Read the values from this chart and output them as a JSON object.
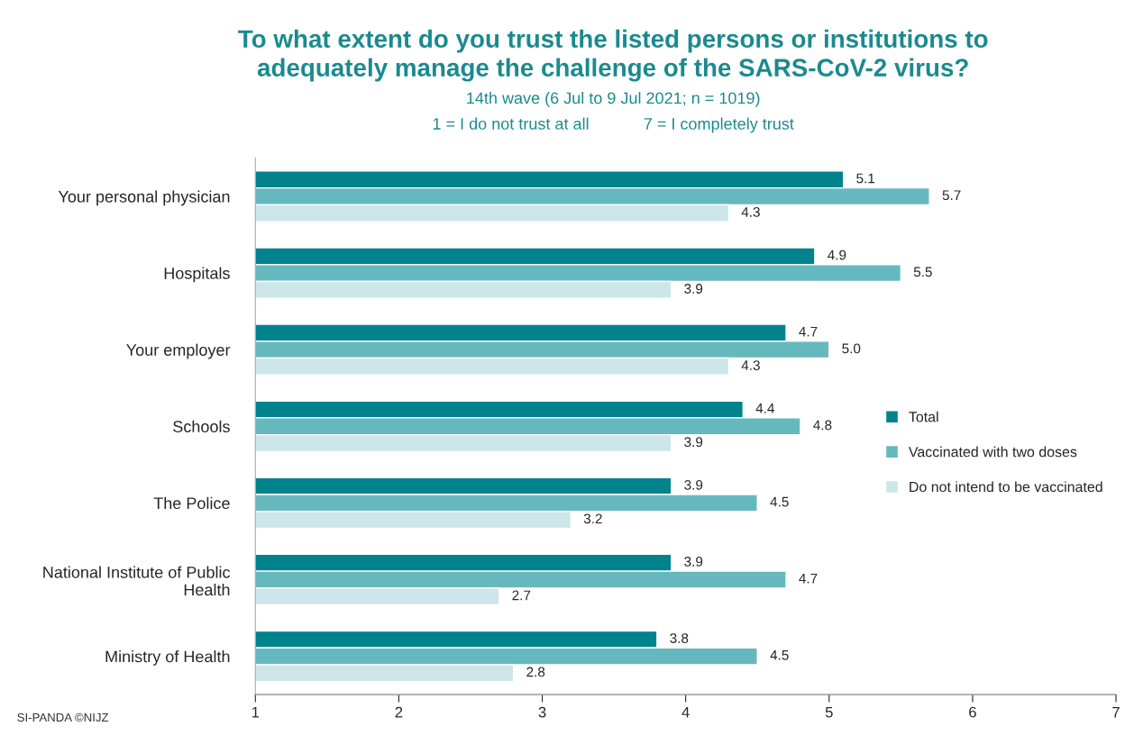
{
  "chart_data": {
    "type": "bar",
    "orientation": "horizontal",
    "title": "To what extent do you trust the listed persons or institutions to\nadequately manage the challenge of the SARS-CoV-2 virus?",
    "subtitle": "14th wave (6 Jul to 9 Jul 2021; n = 1019)",
    "annotations": [
      "1 = I do not trust at all            7 = I completely trust",
      "SI-PANDA ©NIJZ"
    ],
    "categories": [
      "Your personal physician",
      "Hospitals",
      "Your employer",
      "Schools",
      "The Police",
      "National Institute of Public\nHealth",
      "Ministry of Health"
    ],
    "series": [
      {
        "name": "Total",
        "color": "#00838c",
        "values": [
          5.1,
          4.9,
          4.7,
          4.4,
          3.9,
          3.9,
          3.8
        ],
        "value_labels": [
          "5.1",
          "4.9",
          "4.7",
          "4.4",
          "3.9",
          "3.9",
          "3.8"
        ]
      },
      {
        "name": "Vaccinated with two doses",
        "color": "#66b8bf",
        "values": [
          5.7,
          5.5,
          5.0,
          4.8,
          4.5,
          4.7,
          4.5
        ],
        "value_labels": [
          "5.7",
          "5.5",
          "5.0",
          "4.8",
          "4.5",
          "4.7",
          "4.5"
        ]
      },
      {
        "name": "Do not intend to be vaccinated",
        "color": "#cce6ea",
        "values": [
          4.3,
          3.9,
          4.3,
          3.9,
          3.2,
          2.7,
          2.8
        ],
        "value_labels": [
          "4.3",
          "3.9",
          "4.3",
          "3.9",
          "3.2",
          "2.7",
          "2.8"
        ]
      }
    ],
    "xlim": [
      1,
      7
    ],
    "xticks": [
      1,
      2,
      3,
      4,
      5,
      6,
      7
    ],
    "grid": false,
    "legend": "right"
  }
}
